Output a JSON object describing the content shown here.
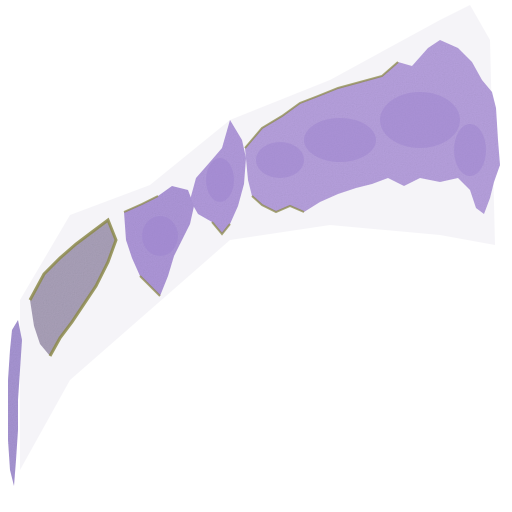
{
  "image": {
    "background_color": "#ffffff",
    "tissue_primary_color": "#b7a2dc",
    "tissue_secondary_color": "#9f84cf",
    "tissue_edge_color": "#8c8a4b",
    "haze_color": "#f0eef4"
  }
}
